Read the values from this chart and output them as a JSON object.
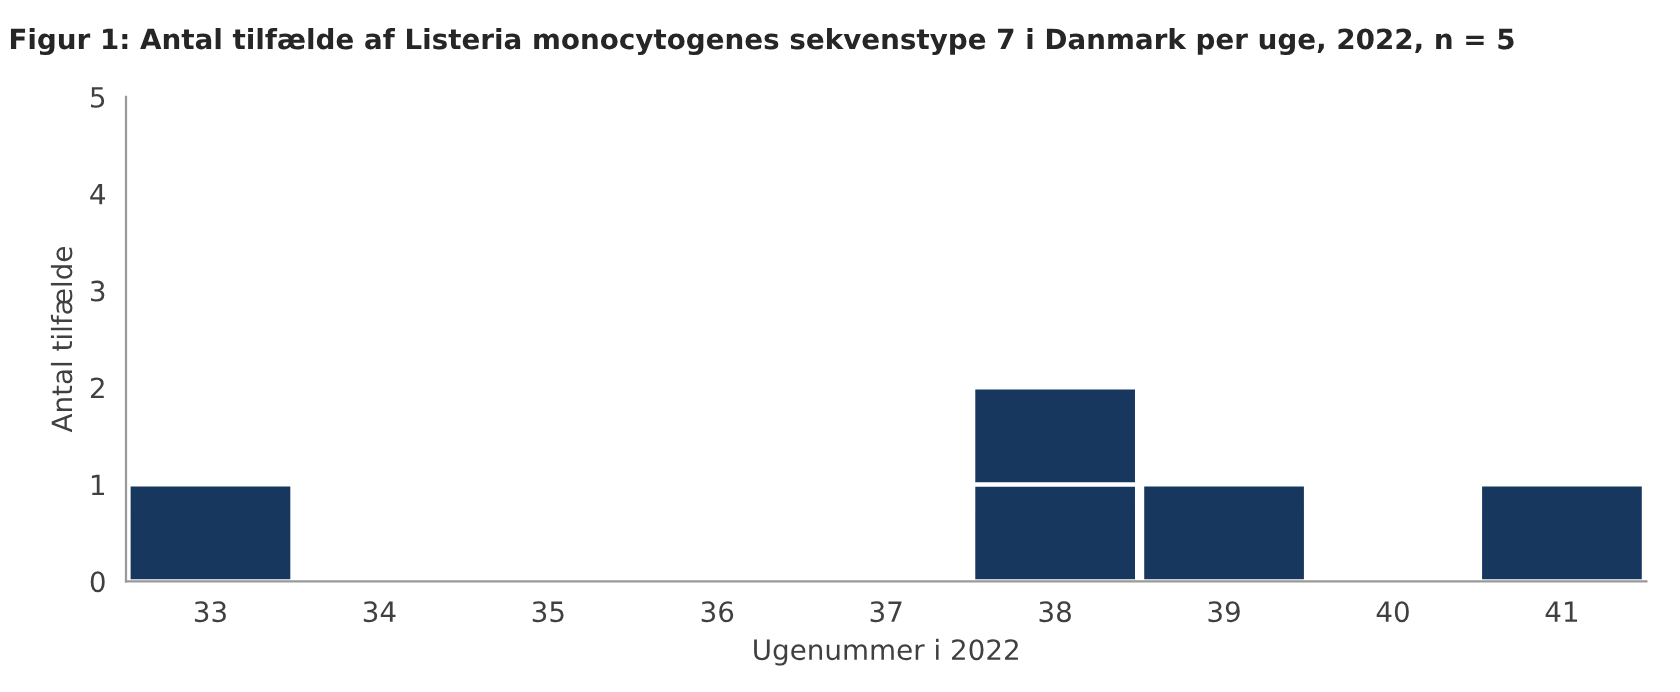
{
  "chart_data": {
    "type": "bar",
    "title": "Figur 1: Antal tilfælde af Listeria monocytogenes sekvenstype 7 i Danmark per uge, 2022, n = 5",
    "xlabel": "Ugenummer i 2022",
    "ylabel": "Antal tilfælde",
    "categories": [
      "33",
      "34",
      "35",
      "36",
      "37",
      "38",
      "39",
      "40",
      "41"
    ],
    "stacked": true,
    "series": [
      {
        "color": "#17375e",
        "values": [
          1,
          0,
          0,
          0,
          0,
          1,
          1,
          0,
          1
        ]
      },
      {
        "color": "#17375e",
        "values": [
          0,
          0,
          0,
          0,
          0,
          1,
          0,
          0,
          0
        ]
      }
    ],
    "ylim": [
      0,
      5
    ],
    "yticks": [
      0,
      1,
      2,
      3,
      4,
      5
    ],
    "grid": false,
    "legend": false
  }
}
